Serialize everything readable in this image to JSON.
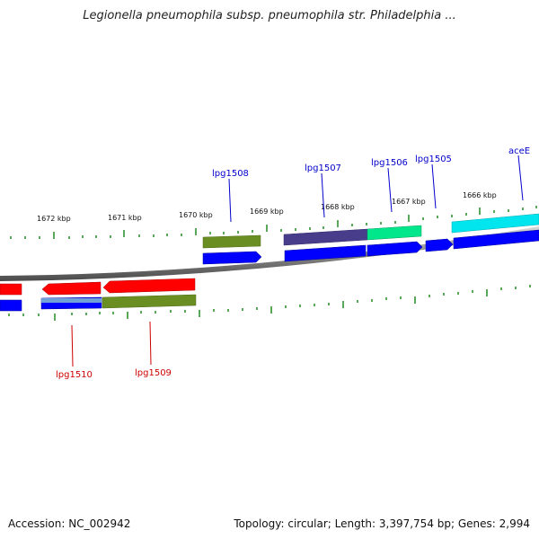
{
  "header": {
    "title": "Legionella pneumophila subsp. pneumophila str. Philadelphia ..."
  },
  "footer": {
    "accession": "Accession: NC_002942",
    "stats": "Topology: circular; Length: 3,397,754 bp; Genes: 2,994"
  },
  "map": {
    "scale_labels": [
      "1672 kbp",
      "1671 kbp",
      "1670 kbp",
      "1669 kbp",
      "1668 kbp",
      "1667 kbp",
      "1666 kbp"
    ],
    "genes_top": [
      "lpg1508",
      "lpg1507",
      "lpg1506",
      "lpg1505",
      "aceE"
    ],
    "genes_bottom": [
      "lpg1510",
      "lpg1509"
    ]
  },
  "colors": {
    "forward_label": "#0000cc",
    "reverse_label": "#cc0000",
    "blue": "#0000ff",
    "red": "#ff0000",
    "olive": "#6b8e23",
    "slate": "#483d8b",
    "spring_green": "#00e68a",
    "cyan": "#00e5ee",
    "tick": "#228b22"
  }
}
